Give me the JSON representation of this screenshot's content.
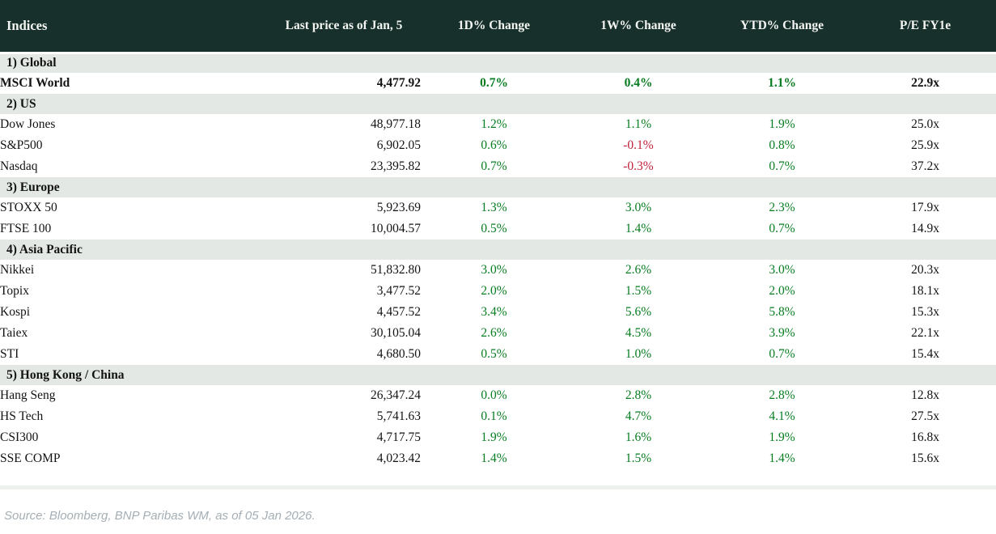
{
  "chart_data": {
    "type": "table",
    "title": "Indices",
    "columns": [
      "Indices",
      "Last price as of Jan, 5",
      "1D% Change",
      "1W% Change",
      "YTD% Change",
      "P/E FY1e"
    ],
    "sections": [
      {
        "label": "1) Global",
        "rows": [
          {
            "name": "MSCI World",
            "last_price": "4,477.92",
            "d1_change": "0.7%",
            "w1_change": "0.4%",
            "ytd_change": "1.1%",
            "pe": "22.9x",
            "emphasis": true
          }
        ]
      },
      {
        "label": "2) US",
        "rows": [
          {
            "name": "Dow Jones",
            "last_price": "48,977.18",
            "d1_change": "1.2%",
            "w1_change": "1.1%",
            "ytd_change": "1.9%",
            "pe": "25.0x",
            "emphasis": false
          },
          {
            "name": "S&P500",
            "last_price": "6,902.05",
            "d1_change": "0.6%",
            "w1_change": "-0.1%",
            "ytd_change": "0.8%",
            "pe": "25.9x",
            "emphasis": false
          },
          {
            "name": "Nasdaq",
            "last_price": "23,395.82",
            "d1_change": "0.7%",
            "w1_change": "-0.3%",
            "ytd_change": "0.7%",
            "pe": "37.2x",
            "emphasis": false
          }
        ]
      },
      {
        "label": "3) Europe",
        "rows": [
          {
            "name": "STOXX 50",
            "last_price": "5,923.69",
            "d1_change": "1.3%",
            "w1_change": "3.0%",
            "ytd_change": "2.3%",
            "pe": "17.9x",
            "emphasis": false
          },
          {
            "name": "FTSE 100",
            "last_price": "10,004.57",
            "d1_change": "0.5%",
            "w1_change": "1.4%",
            "ytd_change": "0.7%",
            "pe": "14.9x",
            "emphasis": false
          }
        ]
      },
      {
        "label": "4) Asia Pacific",
        "rows": [
          {
            "name": "Nikkei",
            "last_price": "51,832.80",
            "d1_change": "3.0%",
            "w1_change": "2.6%",
            "ytd_change": "3.0%",
            "pe": "20.3x",
            "emphasis": false
          },
          {
            "name": "Topix",
            "last_price": "3,477.52",
            "d1_change": "2.0%",
            "w1_change": "1.5%",
            "ytd_change": "2.0%",
            "pe": "18.1x",
            "emphasis": false
          },
          {
            "name": "Kospi",
            "last_price": "4,457.52",
            "d1_change": "3.4%",
            "w1_change": "5.6%",
            "ytd_change": "5.8%",
            "pe": "15.3x",
            "emphasis": false
          },
          {
            "name": "Taiex",
            "last_price": "30,105.04",
            "d1_change": "2.6%",
            "w1_change": "4.5%",
            "ytd_change": "3.9%",
            "pe": "22.1x",
            "emphasis": false
          },
          {
            "name": "STI",
            "last_price": "4,680.50",
            "d1_change": "0.5%",
            "w1_change": "1.0%",
            "ytd_change": "0.7%",
            "pe": "15.4x",
            "emphasis": false
          }
        ]
      },
      {
        "label": "5) Hong Kong / China",
        "rows": [
          {
            "name": "Hang Seng",
            "last_price": "26,347.24",
            "d1_change": "0.0%",
            "w1_change": "2.8%",
            "ytd_change": "2.8%",
            "pe": "12.8x",
            "emphasis": false
          },
          {
            "name": "HS Tech",
            "last_price": "5,741.63",
            "d1_change": "0.1%",
            "w1_change": "4.7%",
            "ytd_change": "4.1%",
            "pe": "27.5x",
            "emphasis": false
          },
          {
            "name": "CSI300",
            "last_price": "4,717.75",
            "d1_change": "1.9%",
            "w1_change": "1.6%",
            "ytd_change": "1.9%",
            "pe": "16.8x",
            "emphasis": false
          },
          {
            "name": "SSE COMP",
            "last_price": "4,023.42",
            "d1_change": "1.4%",
            "w1_change": "1.5%",
            "ytd_change": "1.4%",
            "pe": "15.6x",
            "emphasis": false
          }
        ]
      }
    ]
  },
  "source_note": "Source: Bloomberg, BNP Paribas WM, as of 05 Jan 2026.",
  "colors": {
    "header_bg": "#17302b",
    "header_text": "#f4f6f3",
    "section_bg": "#e3e8e4",
    "row_bg": "#ffffff",
    "positive": "#077d21",
    "negative": "#c41e3a",
    "text": "#131313",
    "source_text": "#a4aeb4",
    "divider": "#edf1ee"
  }
}
